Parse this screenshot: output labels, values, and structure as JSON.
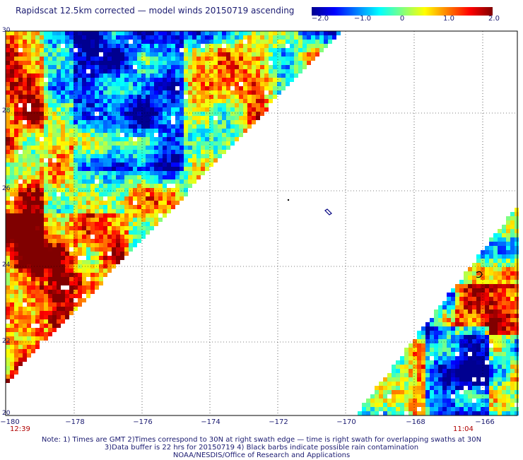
{
  "title": "Rapidscat 12.5km corrected — model winds 20150719 ascending",
  "colorbar": {
    "tick_labels": [
      "−2.0",
      "−1.0",
      "0",
      "1.0",
      "2.0"
    ],
    "tick_values": [
      -2.0,
      -1.0,
      0,
      1.0,
      2.0
    ],
    "colors": [
      "#000090",
      "#0000ff",
      "#0080ff",
      "#00ffff",
      "#80ff80",
      "#ffff00",
      "#ff8000",
      "#ff0000",
      "#800000"
    ]
  },
  "axes": {
    "x_ticks": [
      "−180",
      "−178",
      "−176",
      "−174",
      "−172",
      "−170",
      "−168",
      "−166"
    ],
    "x_values": [
      -180,
      -178,
      -176,
      -174,
      -172,
      -170,
      -168,
      -166
    ],
    "y_ticks": [
      "30",
      "28",
      "26",
      "24",
      "22",
      "20"
    ],
    "y_values": [
      30,
      28,
      26,
      24,
      22,
      20
    ],
    "lon_range": [
      -180,
      -165
    ],
    "lat_range": [
      20,
      30
    ]
  },
  "swath_times": {
    "left": "12:39",
    "right": "11:04"
  },
  "notes": {
    "line1": "Note: 1) Times are GMT 2)Times correspond to 30N at right swath edge — time is right swath for overlapping swaths at 30N",
    "line2": "3)Data buffer is 22 hrs for 20150719 4) Black barbs indicate possible rain contamination",
    "line3": "NOAA/NESDIS/Office of Research and Applications"
  }
}
